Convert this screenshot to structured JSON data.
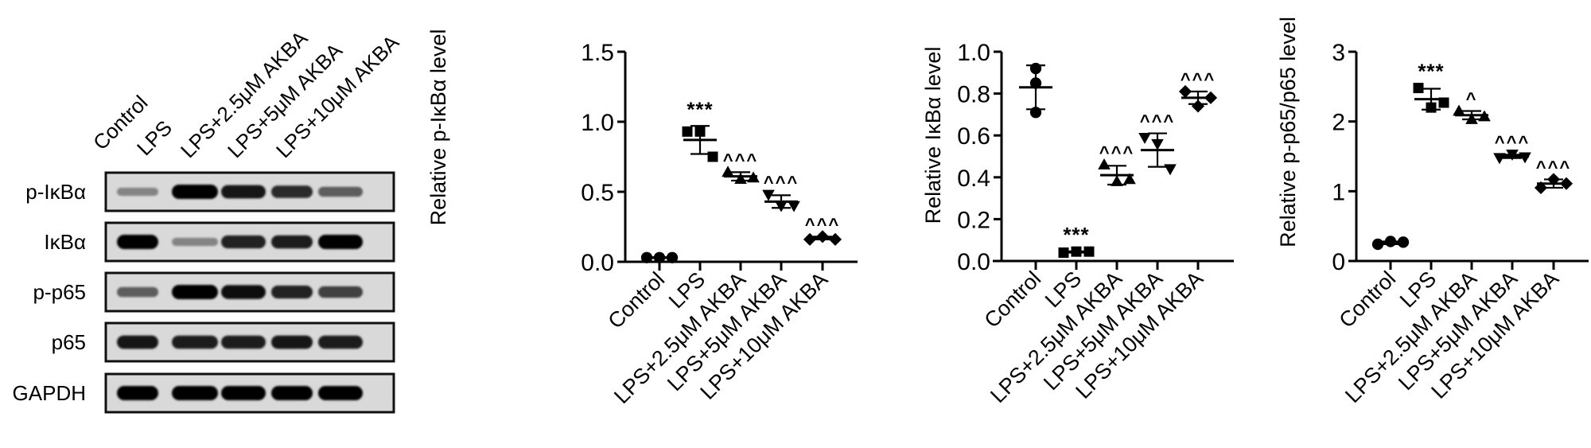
{
  "western_blot": {
    "lanes": [
      "Control",
      "LPS",
      "LPS+2.5μM AKBA",
      "LPS+5μM AKBA",
      "LPS+10μM AKBA"
    ],
    "rows": [
      {
        "label": "p-IκBα",
        "band_intensity": [
          0.35,
          1.0,
          0.9,
          0.8,
          0.55
        ]
      },
      {
        "label": "IκBα",
        "band_intensity": [
          1.0,
          0.35,
          0.85,
          0.88,
          1.0
        ]
      },
      {
        "label": "p-p65",
        "band_intensity": [
          0.55,
          1.0,
          0.95,
          0.85,
          0.7
        ]
      },
      {
        "label": "p65",
        "band_intensity": [
          0.9,
          0.88,
          0.88,
          0.9,
          0.88
        ]
      },
      {
        "label": "GAPDH",
        "band_intensity": [
          1.0,
          1.0,
          1.0,
          1.0,
          1.0
        ]
      }
    ]
  },
  "chart_data": [
    {
      "type": "scatter",
      "title": "",
      "xlabel": "",
      "ylabel": "Relative p-IκBα level",
      "categories": [
        "Control",
        "LPS",
        "LPS+2.5μM AKBA",
        "LPS+5μM AKBA",
        "LPS+10μM AKBA"
      ],
      "ylim": [
        0,
        1.5
      ],
      "yticks": [
        "0.0",
        "0.5",
        "1.0",
        "1.5"
      ],
      "ytick_values": [
        0,
        0.5,
        1.0,
        1.5
      ],
      "grid": false,
      "legend": null,
      "series": [
        {
          "name": "Control",
          "marker": "circle",
          "points": [
            0.03,
            0.03,
            0.03
          ],
          "mean": 0.03,
          "sd": 0.003,
          "annotation": ""
        },
        {
          "name": "LPS",
          "marker": "square",
          "points": [
            0.93,
            0.93,
            0.75
          ],
          "mean": 0.87,
          "sd": 0.1,
          "annotation": "***"
        },
        {
          "name": "LPS+2.5μM AKBA",
          "marker": "triangle-up",
          "points": [
            0.64,
            0.59,
            0.6
          ],
          "mean": 0.61,
          "sd": 0.03,
          "annotation": "^^^"
        },
        {
          "name": "LPS+5μM AKBA",
          "marker": "triangle-down",
          "points": [
            0.48,
            0.4,
            0.4
          ],
          "mean": 0.43,
          "sd": 0.045,
          "annotation": "^^^"
        },
        {
          "name": "LPS+10μM AKBA",
          "marker": "diamond",
          "points": [
            0.16,
            0.18,
            0.16
          ],
          "mean": 0.17,
          "sd": 0.01,
          "annotation": "^^^"
        }
      ]
    },
    {
      "type": "scatter",
      "title": "",
      "xlabel": "",
      "ylabel": "Relative IκBα level",
      "categories": [
        "Control",
        "LPS",
        "LPS+2.5μM AKBA",
        "LPS+5μM AKBA",
        "LPS+10μM AKBA"
      ],
      "ylim": [
        0,
        1.0
      ],
      "yticks": [
        "0.0",
        "0.2",
        "0.4",
        "0.6",
        "0.8",
        "1.0"
      ],
      "ytick_values": [
        0,
        0.2,
        0.4,
        0.6,
        0.8,
        1.0
      ],
      "grid": false,
      "legend": null,
      "series": [
        {
          "name": "Control",
          "marker": "circle",
          "points": [
            0.92,
            0.85,
            0.71
          ],
          "mean": 0.83,
          "sd": 0.105,
          "annotation": ""
        },
        {
          "name": "LPS",
          "marker": "square",
          "points": [
            0.04,
            0.045,
            0.045
          ],
          "mean": 0.043,
          "sd": 0.003,
          "annotation": "***"
        },
        {
          "name": "LPS+2.5μM AKBA",
          "marker": "triangle-up",
          "points": [
            0.46,
            0.38,
            0.39
          ],
          "mean": 0.41,
          "sd": 0.045,
          "annotation": "^^^"
        },
        {
          "name": "LPS+5μM AKBA",
          "marker": "triangle-down",
          "points": [
            0.59,
            0.56,
            0.44
          ],
          "mean": 0.53,
          "sd": 0.08,
          "annotation": "^^^"
        },
        {
          "name": "LPS+10μM AKBA",
          "marker": "diamond",
          "points": [
            0.81,
            0.74,
            0.78
          ],
          "mean": 0.78,
          "sd": 0.03,
          "annotation": "^^^"
        }
      ]
    },
    {
      "type": "scatter",
      "title": "",
      "xlabel": "",
      "ylabel": "Relative p-p65/p65 level",
      "categories": [
        "Control",
        "LPS",
        "LPS+2.5μM AKBA",
        "LPS+5μM AKBA",
        "LPS+10μM AKBA"
      ],
      "ylim": [
        0,
        3
      ],
      "yticks": [
        "0",
        "1",
        "2",
        "3"
      ],
      "ytick_values": [
        0,
        1,
        2,
        3
      ],
      "grid": false,
      "legend": null,
      "series": [
        {
          "name": "Control",
          "marker": "circle",
          "points": [
            0.24,
            0.28,
            0.27
          ],
          "mean": 0.26,
          "sd": 0.02,
          "annotation": ""
        },
        {
          "name": "LPS",
          "marker": "square",
          "points": [
            2.48,
            2.2,
            2.27
          ],
          "mean": 2.32,
          "sd": 0.15,
          "annotation": "***"
        },
        {
          "name": "LPS+2.5μM AKBA",
          "marker": "triangle-up",
          "points": [
            2.15,
            2.03,
            2.07
          ],
          "mean": 2.09,
          "sd": 0.06,
          "annotation": "^"
        },
        {
          "name": "LPS+5μM AKBA",
          "marker": "triangle-down",
          "points": [
            1.48,
            1.53,
            1.49
          ],
          "mean": 1.5,
          "sd": 0.025,
          "annotation": "^^^"
        },
        {
          "name": "LPS+10μM AKBA",
          "marker": "diamond",
          "points": [
            1.05,
            1.17,
            1.11
          ],
          "mean": 1.11,
          "sd": 0.06,
          "annotation": "^^^"
        }
      ]
    }
  ]
}
